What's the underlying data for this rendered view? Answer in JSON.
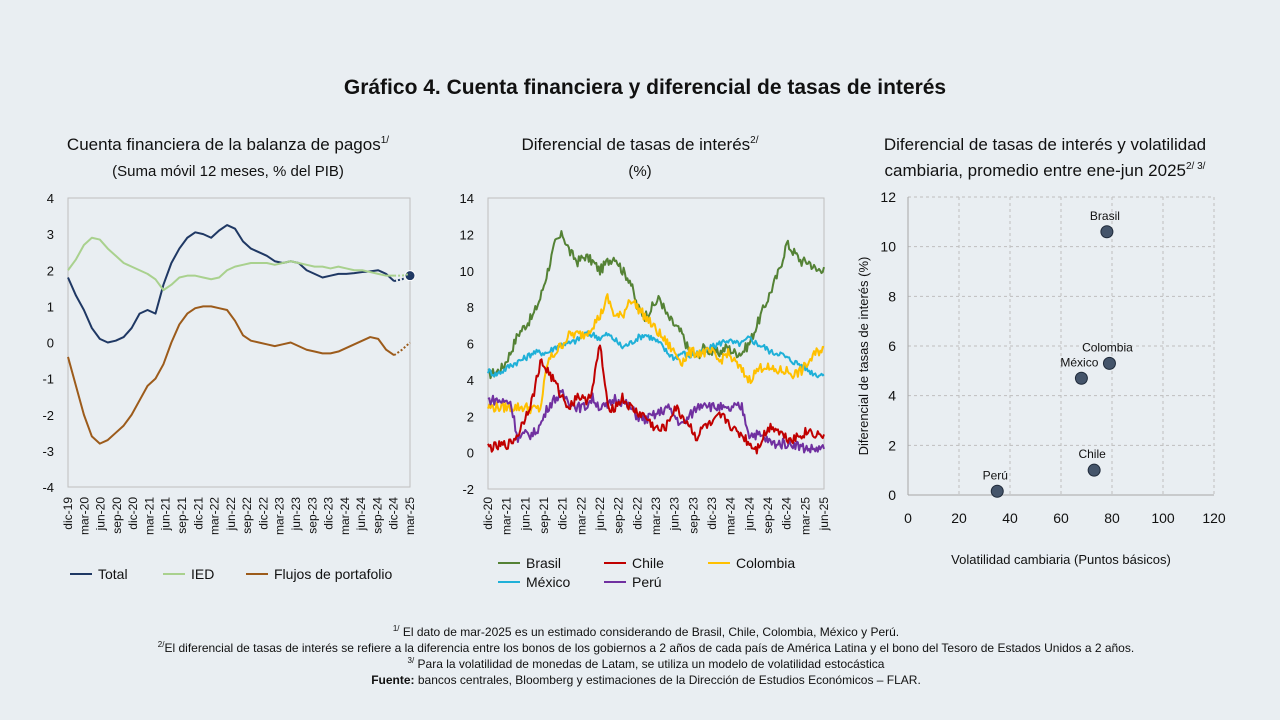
{
  "title": "Gráfico 4. Cuenta financiera y diferencial de tasas de interés",
  "panels": {
    "p1": {
      "title": "Cuenta financiera de la balanza de pagos",
      "title_sup": "1/",
      "subtitle": "(Suma móvil 12 meses, % del PIB)"
    },
    "p2": {
      "title": "Diferencial de tasas de interés",
      "title_sup": "2/",
      "subtitle": "(%)"
    },
    "p3": {
      "title_line1": "Diferencial de tasas de interés y volatilidad",
      "title_line2": "cambiaria, promedio entre ene-jun 2025",
      "title_sup": "2/ 3/"
    }
  },
  "footnotes": {
    "n1_sup": "1/",
    "n1": " El dato de mar-2025 es un estimado considerando de Brasil, Chile, Colombia, México y Perú.",
    "n2_sup": "2/",
    "n2": "El diferencial de tasas de interés se refiere a la diferencia entre los bonos de los gobiernos a 2 años de cada país de América Latina y el bono del Tesoro de Estados Unidos a 2 años.",
    "n3_sup": "3/",
    "n3": " Para la volatilidad de monedas de Latam, se utiliza un modelo de volatilidad estocástica",
    "source_label": "Fuente:",
    "source": " bancos centrales, Bloomberg y estimaciones de la Dirección de Estudios Económicos – FLAR."
  },
  "colors": {
    "total": "#1f3864",
    "ied": "#a9d18e",
    "portafolio": "#9c5b1b",
    "brasil": "#548235",
    "chile": "#c00000",
    "colombia": "#ffc000",
    "mexico": "#1fb0d8",
    "peru": "#7030a0",
    "scatter_fill": "#44546a"
  },
  "chart_data": [
    {
      "type": "line",
      "title": "Cuenta financiera de la balanza de pagos",
      "subtitle": "(Suma móvil 12 meses, % del PIB)",
      "x_ticks": [
        "dic-19",
        "mar-20",
        "jun-20",
        "sep-20",
        "dic-20",
        "mar-21",
        "jun-21",
        "sep-21",
        "dic-21",
        "mar-22",
        "jun-22",
        "sep-22",
        "dic-22",
        "mar-23",
        "jun-23",
        "sep-23",
        "dic-23",
        "mar-24",
        "jun-24",
        "sep-24",
        "dic-24",
        "mar-25"
      ],
      "ylim": [
        -4,
        4
      ],
      "y_ticks": [
        "4",
        "3",
        "2",
        "1",
        "0",
        "-1",
        "-2",
        "-3",
        "-4"
      ],
      "legend_position": "bottom",
      "estimate_last_segment": true,
      "series": [
        {
          "name": "Total",
          "key": "total",
          "values": [
            1.8,
            1.3,
            0.9,
            0.4,
            0.1,
            0.0,
            0.05,
            0.15,
            0.4,
            0.8,
            0.9,
            0.8,
            1.6,
            2.2,
            2.6,
            2.9,
            3.05,
            3.0,
            2.9,
            3.1,
            3.25,
            3.15,
            2.8,
            2.6,
            2.5,
            2.4,
            2.25,
            2.2,
            2.25,
            2.2,
            2.0,
            1.9,
            1.8,
            1.85,
            1.9,
            1.9,
            1.92,
            1.95,
            1.97,
            2.0,
            1.9,
            1.7,
            1.75,
            1.85
          ]
        },
        {
          "name": "IED",
          "key": "ied",
          "values": [
            2.0,
            2.3,
            2.7,
            2.9,
            2.85,
            2.6,
            2.4,
            2.2,
            2.1,
            2.0,
            1.9,
            1.75,
            1.45,
            1.6,
            1.8,
            1.85,
            1.85,
            1.8,
            1.75,
            1.8,
            2.0,
            2.1,
            2.15,
            2.2,
            2.2,
            2.2,
            2.15,
            2.2,
            2.25,
            2.2,
            2.15,
            2.1,
            2.1,
            2.05,
            2.1,
            2.05,
            2.0,
            2.0,
            1.95,
            1.9,
            1.85,
            1.85,
            1.85,
            1.9
          ]
        },
        {
          "name": "Flujos de portafolio",
          "key": "portafolio",
          "values": [
            -0.4,
            -1.2,
            -2.0,
            -2.6,
            -2.8,
            -2.7,
            -2.5,
            -2.3,
            -2.0,
            -1.6,
            -1.2,
            -1.0,
            -0.6,
            0.0,
            0.5,
            0.8,
            0.95,
            1.0,
            1.0,
            0.95,
            0.9,
            0.6,
            0.2,
            0.05,
            0.0,
            -0.05,
            -0.1,
            -0.05,
            0.0,
            -0.1,
            -0.2,
            -0.25,
            -0.3,
            -0.3,
            -0.25,
            -0.15,
            -0.05,
            0.05,
            0.15,
            0.1,
            -0.2,
            -0.35,
            -0.2,
            0.0
          ]
        }
      ]
    },
    {
      "type": "line",
      "title": "Diferencial de tasas de interés",
      "subtitle": "(%)",
      "x_ticks": [
        "dic-20",
        "mar-21",
        "jun-21",
        "sep-21",
        "dic-21",
        "mar-22",
        "jun-22",
        "sep-22",
        "dic-22",
        "mar-23",
        "jun-23",
        "sep-23",
        "dic-23",
        "mar-24",
        "jun-24",
        "sep-24",
        "dic-24",
        "mar-25",
        "jun-25"
      ],
      "ylim": [
        -2,
        14
      ],
      "y_ticks": [
        "14",
        "12",
        "10",
        "8",
        "6",
        "4",
        "2",
        "0",
        "-2"
      ],
      "legend_position": "bottom",
      "series": [
        {
          "name": "Brasil",
          "key": "brasil",
          "values": [
            4.3,
            4.4,
            4.7,
            5.5,
            6.5,
            7.0,
            7.5,
            8.5,
            10.0,
            11.5,
            12.0,
            11.0,
            10.5,
            10.8,
            10.5,
            10.0,
            10.5,
            10.8,
            10.0,
            9.5,
            8.0,
            7.5,
            8.0,
            8.5,
            7.5,
            7.0,
            6.5,
            5.5,
            5.3,
            5.8,
            5.5,
            5.5,
            5.8,
            5.5,
            5.5,
            6.0,
            7.0,
            8.0,
            9.0,
            10.0,
            11.5,
            11.0,
            10.5,
            10.5,
            10.0,
            10.2
          ]
        },
        {
          "name": "Chile",
          "key": "chile",
          "values": [
            0.3,
            0.3,
            0.4,
            0.5,
            1.0,
            2.0,
            3.0,
            5.0,
            4.5,
            3.8,
            3.0,
            2.5,
            3.2,
            2.8,
            3.5,
            6.0,
            2.5,
            2.5,
            3.0,
            2.5,
            2.2,
            2.0,
            1.5,
            1.2,
            1.5,
            2.5,
            2.0,
            1.5,
            0.8,
            1.5,
            1.5,
            2.0,
            1.8,
            1.2,
            1.0,
            0.5,
            0.2,
            1.0,
            1.5,
            1.2,
            0.8,
            0.8,
            1.0,
            1.2,
            1.0,
            1.0
          ]
        },
        {
          "name": "Colombia",
          "key": "colombia",
          "values": [
            2.5,
            2.5,
            2.5,
            2.5,
            2.5,
            2.5,
            2.4,
            2.4,
            5.0,
            5.5,
            6.0,
            6.5,
            6.5,
            6.5,
            7.0,
            7.5,
            8.5,
            7.5,
            7.5,
            8.5,
            8.0,
            7.5,
            7.0,
            6.5,
            6.0,
            5.5,
            5.0,
            5.5,
            5.5,
            5.5,
            5.5,
            5.0,
            5.5,
            5.0,
            4.5,
            4.0,
            4.5,
            4.8,
            4.5,
            4.5,
            4.5,
            4.3,
            4.5,
            5.0,
            5.5,
            5.8
          ]
        },
        {
          "name": "México",
          "key": "mexico",
          "values": [
            4.5,
            4.3,
            4.5,
            4.8,
            5.0,
            5.2,
            5.5,
            5.5,
            5.5,
            5.8,
            6.0,
            6.0,
            6.2,
            6.5,
            6.5,
            6.3,
            6.5,
            6.2,
            5.8,
            6.0,
            6.3,
            6.5,
            6.3,
            6.0,
            5.5,
            5.2,
            5.5,
            5.3,
            5.5,
            5.5,
            5.8,
            6.0,
            6.2,
            6.0,
            6.0,
            6.3,
            6.0,
            5.8,
            5.5,
            5.5,
            5.2,
            5.0,
            4.8,
            4.5,
            4.3,
            4.3
          ]
        },
        {
          "name": "Perú",
          "key": "peru",
          "values": [
            2.9,
            2.9,
            2.8,
            2.8,
            0.8,
            1.0,
            1.0,
            1.5,
            2.5,
            3.0,
            3.2,
            2.8,
            2.5,
            2.5,
            3.0,
            2.5,
            2.5,
            3.0,
            2.8,
            2.5,
            2.0,
            1.8,
            2.0,
            2.2,
            2.5,
            2.0,
            1.5,
            2.0,
            2.5,
            2.8,
            2.5,
            2.5,
            2.3,
            2.5,
            2.5,
            1.0,
            1.0,
            0.8,
            0.5,
            0.5,
            0.5,
            0.5,
            0.3,
            0.2,
            0.2,
            0.2
          ]
        }
      ]
    },
    {
      "type": "scatter",
      "title": "Diferencial de tasas de interés y volatilidad cambiaria, promedio entre ene-jun 2025",
      "xlabel": "Volatilidad cambiaria (Puntos básicos)",
      "ylabel": "Diferencial de tasas de interés (%)",
      "xlim": [
        0,
        120
      ],
      "ylim": [
        0,
        12
      ],
      "x_ticks": [
        "0",
        "20",
        "40",
        "60",
        "80",
        "100",
        "120"
      ],
      "y_ticks": [
        "0",
        "2",
        "4",
        "6",
        "8",
        "10",
        "12"
      ],
      "grid": true,
      "points": [
        {
          "label": "Brasil",
          "x": 78,
          "y": 10.6
        },
        {
          "label": "Colombia",
          "x": 79,
          "y": 5.3
        },
        {
          "label": "México",
          "x": 68,
          "y": 4.7
        },
        {
          "label": "Chile",
          "x": 73,
          "y": 1.0
        },
        {
          "label": "Perú",
          "x": 35,
          "y": 0.15
        }
      ]
    }
  ]
}
